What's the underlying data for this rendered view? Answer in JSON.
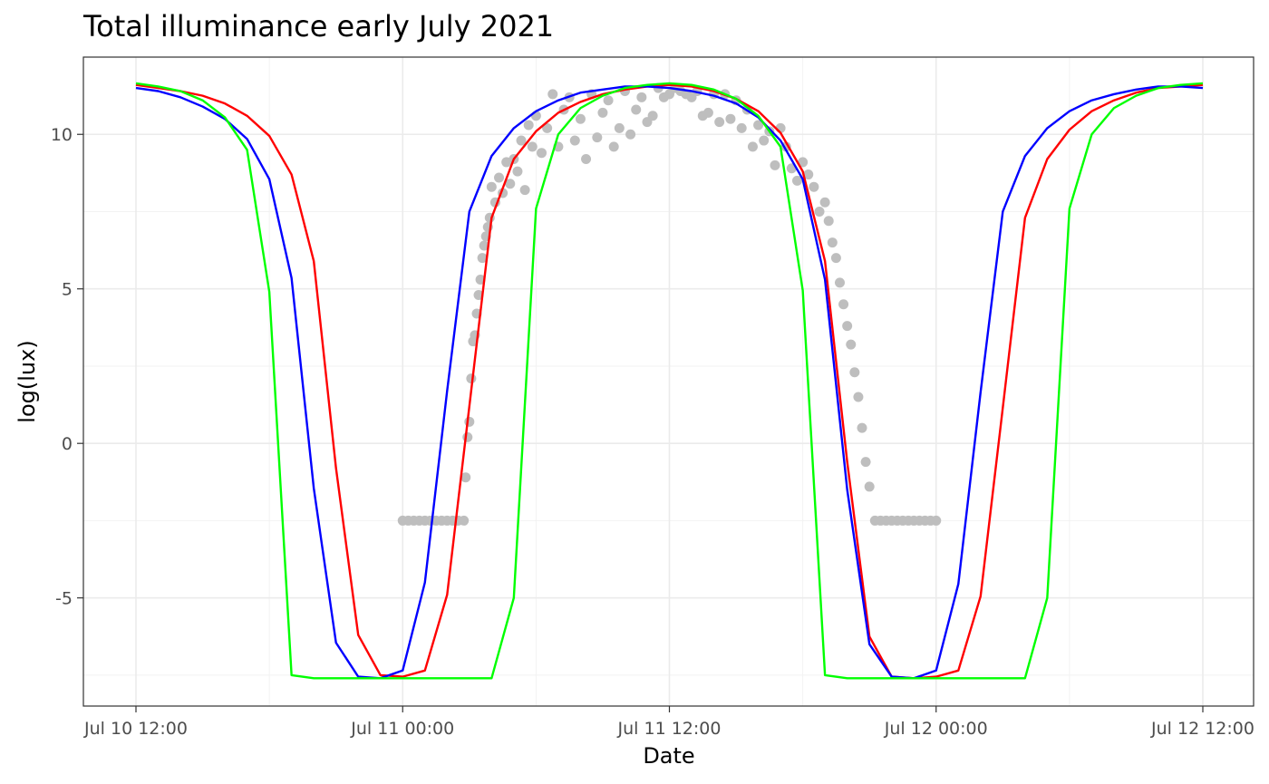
{
  "chart_data": {
    "type": "line",
    "title": "Total illuminance early July 2021",
    "xlabel": "Date",
    "ylabel": "log(lux)",
    "x_axis_type": "datetime",
    "xlim": [
      "2021-07-10 12:00",
      "2021-07-12 12:00"
    ],
    "ylim": [
      -8.5,
      12.5
    ],
    "grid": true,
    "legend": "none",
    "x_ticks": [
      {
        "value": "2021-07-10 12:00",
        "label": "Jul 10 12:00"
      },
      {
        "value": "2021-07-11 00:00",
        "label": "Jul 11 00:00"
      },
      {
        "value": "2021-07-11 12:00",
        "label": "Jul 11 12:00"
      },
      {
        "value": "2021-07-12 00:00",
        "label": "Jul 12 00:00"
      },
      {
        "value": "2021-07-12 12:00",
        "label": "Jul 12 12:00"
      }
    ],
    "y_ticks": [
      {
        "value": -5,
        "label": "-5"
      },
      {
        "value": 0,
        "label": "0"
      },
      {
        "value": 5,
        "label": "5"
      },
      {
        "value": 10,
        "label": "10"
      }
    ],
    "series": [
      {
        "color": "#ff0000",
        "x": [
          "2021-07-10 12:00",
          "2021-07-10 13:00",
          "2021-07-10 14:00",
          "2021-07-10 15:00",
          "2021-07-10 16:00",
          "2021-07-10 17:00",
          "2021-07-10 18:00",
          "2021-07-10 19:00",
          "2021-07-10 20:00",
          "2021-07-10 21:00",
          "2021-07-10 22:00",
          "2021-07-10 23:00",
          "2021-07-11 00:00",
          "2021-07-11 01:00",
          "2021-07-11 02:00",
          "2021-07-11 03:00",
          "2021-07-11 04:00",
          "2021-07-11 05:00",
          "2021-07-11 06:00",
          "2021-07-11 07:00",
          "2021-07-11 08:00",
          "2021-07-11 09:00",
          "2021-07-11 10:00",
          "2021-07-11 11:00",
          "2021-07-11 12:00",
          "2021-07-11 13:00",
          "2021-07-11 14:00",
          "2021-07-11 15:00",
          "2021-07-11 16:00",
          "2021-07-11 17:00",
          "2021-07-11 18:00",
          "2021-07-11 19:00",
          "2021-07-11 20:00",
          "2021-07-11 21:00",
          "2021-07-11 22:00",
          "2021-07-11 23:00",
          "2021-07-12 00:00",
          "2021-07-12 01:00",
          "2021-07-12 02:00",
          "2021-07-12 03:00",
          "2021-07-12 04:00",
          "2021-07-12 05:00",
          "2021-07-12 06:00",
          "2021-07-12 07:00",
          "2021-07-12 08:00",
          "2021-07-12 09:00",
          "2021-07-12 10:00",
          "2021-07-12 11:00",
          "2021-07-12 12:00"
        ],
        "y": [
          11.6,
          11.5,
          11.4,
          11.25,
          11.0,
          10.6,
          9.95,
          8.7,
          5.9,
          -0.8,
          -6.2,
          -7.5,
          -7.55,
          -7.35,
          -4.9,
          1.2,
          7.3,
          9.2,
          10.1,
          10.7,
          11.05,
          11.3,
          11.45,
          11.55,
          11.6,
          11.55,
          11.4,
          11.15,
          10.75,
          10.05,
          8.8,
          5.9,
          -0.6,
          -6.25,
          -7.55,
          -7.6,
          -7.55,
          -7.35,
          -4.95,
          1.15,
          7.3,
          9.2,
          10.15,
          10.75,
          11.1,
          11.35,
          11.5,
          11.55,
          11.6
        ]
      },
      {
        "color": "#0000ff",
        "x": [
          "2021-07-10 12:00",
          "2021-07-10 13:00",
          "2021-07-10 14:00",
          "2021-07-10 15:00",
          "2021-07-10 16:00",
          "2021-07-10 17:00",
          "2021-07-10 18:00",
          "2021-07-10 19:00",
          "2021-07-10 20:00",
          "2021-07-10 21:00",
          "2021-07-10 22:00",
          "2021-07-10 23:00",
          "2021-07-11 00:00",
          "2021-07-11 01:00",
          "2021-07-11 02:00",
          "2021-07-11 03:00",
          "2021-07-11 04:00",
          "2021-07-11 05:00",
          "2021-07-11 06:00",
          "2021-07-11 07:00",
          "2021-07-11 08:00",
          "2021-07-11 09:00",
          "2021-07-11 10:00",
          "2021-07-11 11:00",
          "2021-07-11 12:00",
          "2021-07-11 13:00",
          "2021-07-11 14:00",
          "2021-07-11 15:00",
          "2021-07-11 16:00",
          "2021-07-11 17:00",
          "2021-07-11 18:00",
          "2021-07-11 19:00",
          "2021-07-11 20:00",
          "2021-07-11 21:00",
          "2021-07-11 22:00",
          "2021-07-11 23:00",
          "2021-07-12 00:00",
          "2021-07-12 01:00",
          "2021-07-12 02:00",
          "2021-07-12 03:00",
          "2021-07-12 04:00",
          "2021-07-12 05:00",
          "2021-07-12 06:00",
          "2021-07-12 07:00",
          "2021-07-12 08:00",
          "2021-07-12 09:00",
          "2021-07-12 10:00",
          "2021-07-12 11:00",
          "2021-07-12 12:00"
        ],
        "y": [
          11.5,
          11.4,
          11.2,
          10.9,
          10.5,
          9.85,
          8.55,
          5.35,
          -1.45,
          -6.45,
          -7.55,
          -7.6,
          -7.35,
          -4.5,
          1.7,
          7.5,
          9.3,
          10.2,
          10.75,
          11.1,
          11.35,
          11.45,
          11.55,
          11.55,
          11.5,
          11.4,
          11.25,
          11.0,
          10.55,
          9.8,
          8.55,
          5.3,
          -1.5,
          -6.5,
          -7.55,
          -7.6,
          -7.35,
          -4.55,
          1.65,
          7.5,
          9.3,
          10.2,
          10.75,
          11.1,
          11.3,
          11.45,
          11.55,
          11.55,
          11.5
        ]
      },
      {
        "color": "#00ff00",
        "x": [
          "2021-07-10 12:00",
          "2021-07-10 13:00",
          "2021-07-10 14:00",
          "2021-07-10 15:00",
          "2021-07-10 16:00",
          "2021-07-10 17:00",
          "2021-07-10 18:00",
          "2021-07-10 19:00",
          "2021-07-10 20:00",
          "2021-07-10 21:00",
          "2021-07-10 22:00",
          "2021-07-10 23:00",
          "2021-07-11 00:00",
          "2021-07-11 01:00",
          "2021-07-11 02:00",
          "2021-07-11 03:00",
          "2021-07-11 04:00",
          "2021-07-11 05:00",
          "2021-07-11 06:00",
          "2021-07-11 07:00",
          "2021-07-11 08:00",
          "2021-07-11 09:00",
          "2021-07-11 10:00",
          "2021-07-11 11:00",
          "2021-07-11 12:00",
          "2021-07-11 13:00",
          "2021-07-11 14:00",
          "2021-07-11 15:00",
          "2021-07-11 16:00",
          "2021-07-11 17:00",
          "2021-07-11 18:00",
          "2021-07-11 19:00",
          "2021-07-11 20:00",
          "2021-07-11 21:00",
          "2021-07-11 22:00",
          "2021-07-11 23:00",
          "2021-07-12 00:00",
          "2021-07-12 01:00",
          "2021-07-12 02:00",
          "2021-07-12 03:00",
          "2021-07-12 04:00",
          "2021-07-12 05:00",
          "2021-07-12 06:00",
          "2021-07-12 07:00",
          "2021-07-12 08:00",
          "2021-07-12 09:00",
          "2021-07-12 10:00",
          "2021-07-12 11:00",
          "2021-07-12 12:00"
        ],
        "y": [
          11.65,
          11.55,
          11.4,
          11.1,
          10.55,
          9.5,
          4.9,
          -7.5,
          -7.6,
          -7.6,
          -7.6,
          -7.6,
          -7.6,
          -7.6,
          -7.6,
          -7.6,
          -7.6,
          -5.0,
          7.6,
          10.0,
          10.85,
          11.25,
          11.5,
          11.6,
          11.65,
          11.6,
          11.45,
          11.15,
          10.6,
          9.6,
          4.95,
          -7.5,
          -7.6,
          -7.6,
          -7.6,
          -7.6,
          -7.6,
          -7.6,
          -7.6,
          -7.6,
          -7.6,
          -5.0,
          7.6,
          10.0,
          10.85,
          11.25,
          11.5,
          11.6,
          11.65
        ]
      }
    ],
    "scatter": {
      "color": "#bebebe",
      "x": [
        "2021-07-11 00:00",
        "2021-07-11 00:15",
        "2021-07-11 00:30",
        "2021-07-11 00:45",
        "2021-07-11 01:00",
        "2021-07-11 01:15",
        "2021-07-11 01:30",
        "2021-07-11 01:45",
        "2021-07-11 02:00",
        "2021-07-11 02:15",
        "2021-07-11 02:30",
        "2021-07-11 02:45",
        "2021-07-11 02:50",
        "2021-07-11 02:55",
        "2021-07-11 03:00",
        "2021-07-11 03:05",
        "2021-07-11 03:10",
        "2021-07-11 03:15",
        "2021-07-11 03:20",
        "2021-07-11 03:25",
        "2021-07-11 03:30",
        "2021-07-11 03:35",
        "2021-07-11 03:40",
        "2021-07-11 03:45",
        "2021-07-11 03:50",
        "2021-07-11 03:55",
        "2021-07-11 04:00",
        "2021-07-11 04:10",
        "2021-07-11 04:20",
        "2021-07-11 04:30",
        "2021-07-11 04:40",
        "2021-07-11 04:50",
        "2021-07-11 05:00",
        "2021-07-11 05:10",
        "2021-07-11 05:20",
        "2021-07-11 05:30",
        "2021-07-11 05:40",
        "2021-07-11 05:50",
        "2021-07-11 06:00",
        "2021-07-11 06:15",
        "2021-07-11 06:30",
        "2021-07-11 06:45",
        "2021-07-11 07:00",
        "2021-07-11 07:15",
        "2021-07-11 07:30",
        "2021-07-11 07:45",
        "2021-07-11 08:00",
        "2021-07-11 08:15",
        "2021-07-11 08:30",
        "2021-07-11 08:45",
        "2021-07-11 09:00",
        "2021-07-11 09:15",
        "2021-07-11 09:30",
        "2021-07-11 09:45",
        "2021-07-11 10:00",
        "2021-07-11 10:15",
        "2021-07-11 10:30",
        "2021-07-11 10:45",
        "2021-07-11 11:00",
        "2021-07-11 11:15",
        "2021-07-11 11:30",
        "2021-07-11 11:45",
        "2021-07-11 12:00",
        "2021-07-11 12:15",
        "2021-07-11 12:30",
        "2021-07-11 12:45",
        "2021-07-11 13:00",
        "2021-07-11 13:15",
        "2021-07-11 13:30",
        "2021-07-11 13:45",
        "2021-07-11 14:00",
        "2021-07-11 14:15",
        "2021-07-11 14:30",
        "2021-07-11 14:45",
        "2021-07-11 15:00",
        "2021-07-11 15:15",
        "2021-07-11 15:30",
        "2021-07-11 15:45",
        "2021-07-11 16:00",
        "2021-07-11 16:15",
        "2021-07-11 16:30",
        "2021-07-11 16:45",
        "2021-07-11 17:00",
        "2021-07-11 17:15",
        "2021-07-11 17:30",
        "2021-07-11 17:45",
        "2021-07-11 18:00",
        "2021-07-11 18:15",
        "2021-07-11 18:30",
        "2021-07-11 18:45",
        "2021-07-11 19:00",
        "2021-07-11 19:10",
        "2021-07-11 19:20",
        "2021-07-11 19:30",
        "2021-07-11 19:40",
        "2021-07-11 19:50",
        "2021-07-11 20:00",
        "2021-07-11 20:10",
        "2021-07-11 20:20",
        "2021-07-11 20:30",
        "2021-07-11 20:40",
        "2021-07-11 20:50",
        "2021-07-11 21:00",
        "2021-07-11 21:15",
        "2021-07-11 21:30",
        "2021-07-11 21:45",
        "2021-07-11 22:00",
        "2021-07-11 22:15",
        "2021-07-11 22:30",
        "2021-07-11 22:45",
        "2021-07-11 23:00",
        "2021-07-11 23:15",
        "2021-07-11 23:30",
        "2021-07-11 23:45",
        "2021-07-12 00:00"
      ],
      "y": [
        -2.5,
        -2.5,
        -2.5,
        -2.5,
        -2.5,
        -2.5,
        -2.5,
        -2.5,
        -2.5,
        -2.5,
        -2.5,
        -2.5,
        -1.1,
        0.2,
        0.7,
        2.1,
        3.3,
        3.5,
        4.2,
        4.8,
        5.3,
        6.0,
        6.4,
        6.7,
        7.0,
        7.3,
        8.3,
        7.8,
        8.6,
        8.1,
        9.1,
        8.4,
        9.2,
        8.8,
        9.8,
        8.2,
        10.3,
        9.6,
        10.6,
        9.4,
        10.2,
        11.3,
        9.6,
        10.8,
        11.2,
        9.8,
        10.5,
        9.2,
        11.3,
        9.9,
        10.7,
        11.1,
        9.6,
        10.2,
        11.4,
        10.0,
        10.8,
        11.2,
        10.4,
        10.6,
        11.5,
        11.2,
        11.3,
        11.5,
        11.4,
        11.3,
        11.2,
        11.4,
        10.6,
        10.7,
        11.3,
        10.4,
        11.3,
        10.5,
        11.1,
        10.2,
        10.8,
        9.6,
        10.3,
        9.8,
        10.1,
        9.0,
        10.2,
        9.6,
        8.9,
        8.5,
        9.1,
        8.7,
        8.3,
        7.5,
        7.8,
        7.2,
        6.5,
        6.0,
        5.2,
        4.5,
        3.8,
        3.2,
        2.3,
        1.5,
        0.5,
        -0.6,
        -1.4,
        -2.5,
        -2.5,
        -2.5,
        -2.5,
        -2.5,
        -2.5,
        -2.5,
        -2.5,
        -2.5,
        -2.5,
        -2.5,
        -2.5
      ]
    }
  }
}
